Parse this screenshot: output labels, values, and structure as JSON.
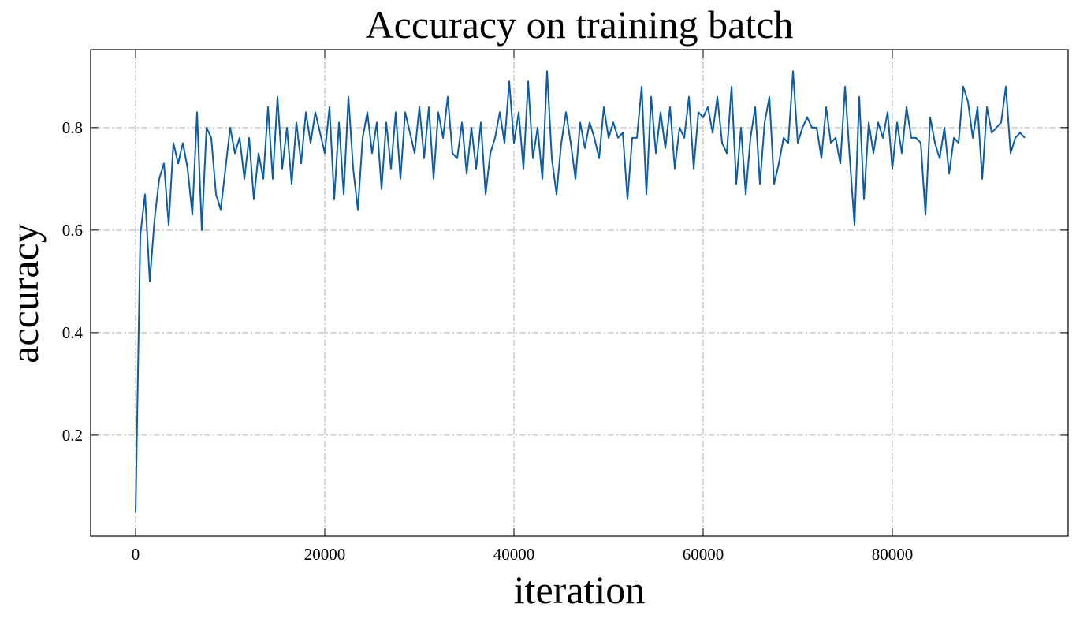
{
  "chart_data": {
    "type": "line",
    "title": "Accuracy on training batch",
    "xlabel": "iteration",
    "ylabel": "accuracy",
    "color": "#0c5da5",
    "grid": true,
    "xlim": [
      -4750,
      98580
    ],
    "ylim": [
      0.003,
      0.952
    ],
    "xticks": [
      0,
      20000,
      40000,
      60000,
      80000
    ],
    "yticks": [
      0.2,
      0.4,
      0.6,
      0.8
    ],
    "x": [
      0,
      500,
      1000,
      1500,
      2000,
      2500,
      3000,
      3500,
      4000,
      4500,
      5000,
      5500,
      6000,
      6500,
      7000,
      7500,
      8000,
      8500,
      9000,
      9500,
      10000,
      10500,
      11000,
      11500,
      12000,
      12500,
      13000,
      13500,
      14000,
      14500,
      15000,
      15500,
      16000,
      16500,
      17000,
      17500,
      18000,
      18500,
      19000,
      19500,
      20000,
      20500,
      21000,
      21500,
      22000,
      22500,
      23000,
      23500,
      24000,
      24500,
      25000,
      25500,
      26000,
      26500,
      27000,
      27500,
      28000,
      28500,
      29000,
      29500,
      30000,
      30500,
      31000,
      31500,
      32000,
      32500,
      33000,
      33500,
      34000,
      34500,
      35000,
      35500,
      36000,
      36500,
      37000,
      37500,
      38000,
      38500,
      39000,
      39500,
      40000,
      40500,
      41000,
      41500,
      42000,
      42500,
      43000,
      43500,
      44000,
      44500,
      45000,
      45500,
      46000,
      46500,
      47000,
      47500,
      48000,
      48500,
      49000,
      49500,
      50000,
      50500,
      51000,
      51500,
      52000,
      52500,
      53000,
      53500,
      54000,
      54500,
      55000,
      55500,
      56000,
      56500,
      57000,
      57500,
      58000,
      58500,
      59000,
      59500,
      60000,
      60500,
      61000,
      61500,
      62000,
      62500,
      63000,
      63500,
      64000,
      64500,
      65000,
      65500,
      66000,
      66500,
      67000,
      67500,
      68000,
      68500,
      69000,
      69500,
      70000,
      70500,
      71000,
      71500,
      72000,
      72500,
      73000,
      73500,
      74000,
      74500,
      75000,
      75500,
      76000,
      76500,
      77000,
      77500,
      78000,
      78500,
      79000,
      79500,
      80000,
      80500,
      81000,
      81500,
      82000,
      82500,
      83000,
      83500,
      84000,
      84500,
      85000,
      85500,
      86000,
      86500,
      87000,
      87500,
      88000,
      88500,
      89000,
      89500,
      90000,
      90500,
      91000,
      91500,
      92000,
      92500,
      93000,
      93500,
      94000
    ],
    "values": [
      0.05,
      0.59,
      0.67,
      0.5,
      0.62,
      0.7,
      0.73,
      0.61,
      0.77,
      0.73,
      0.77,
      0.72,
      0.63,
      0.83,
      0.6,
      0.8,
      0.78,
      0.67,
      0.64,
      0.72,
      0.8,
      0.75,
      0.78,
      0.7,
      0.78,
      0.66,
      0.75,
      0.7,
      0.84,
      0.7,
      0.86,
      0.72,
      0.8,
      0.69,
      0.81,
      0.73,
      0.83,
      0.77,
      0.83,
      0.79,
      0.75,
      0.84,
      0.66,
      0.81,
      0.67,
      0.86,
      0.72,
      0.64,
      0.78,
      0.83,
      0.75,
      0.81,
      0.68,
      0.81,
      0.72,
      0.83,
      0.7,
      0.83,
      0.79,
      0.75,
      0.84,
      0.74,
      0.84,
      0.7,
      0.83,
      0.78,
      0.86,
      0.75,
      0.74,
      0.81,
      0.71,
      0.8,
      0.72,
      0.81,
      0.67,
      0.75,
      0.78,
      0.83,
      0.77,
      0.89,
      0.77,
      0.83,
      0.72,
      0.89,
      0.74,
      0.8,
      0.7,
      0.91,
      0.74,
      0.67,
      0.77,
      0.83,
      0.77,
      0.7,
      0.81,
      0.76,
      0.81,
      0.78,
      0.74,
      0.84,
      0.78,
      0.81,
      0.78,
      0.79,
      0.66,
      0.78,
      0.78,
      0.88,
      0.67,
      0.86,
      0.75,
      0.83,
      0.76,
      0.84,
      0.72,
      0.8,
      0.78,
      0.86,
      0.72,
      0.83,
      0.82,
      0.84,
      0.79,
      0.86,
      0.77,
      0.75,
      0.88,
      0.69,
      0.8,
      0.67,
      0.78,
      0.84,
      0.69,
      0.81,
      0.86,
      0.69,
      0.73,
      0.78,
      0.77,
      0.91,
      0.77,
      0.8,
      0.82,
      0.8,
      0.8,
      0.74,
      0.84,
      0.77,
      0.78,
      0.73,
      0.88,
      0.74,
      0.61,
      0.86,
      0.66,
      0.81,
      0.75,
      0.81,
      0.78,
      0.83,
      0.72,
      0.81,
      0.75,
      0.84,
      0.78,
      0.78,
      0.77,
      0.63,
      0.82,
      0.77,
      0.74,
      0.8,
      0.71,
      0.78,
      0.77,
      0.88,
      0.85,
      0.78,
      0.84,
      0.7,
      0.84,
      0.79,
      0.8,
      0.81,
      0.88,
      0.75,
      0.78,
      0.79,
      0.78
    ]
  }
}
